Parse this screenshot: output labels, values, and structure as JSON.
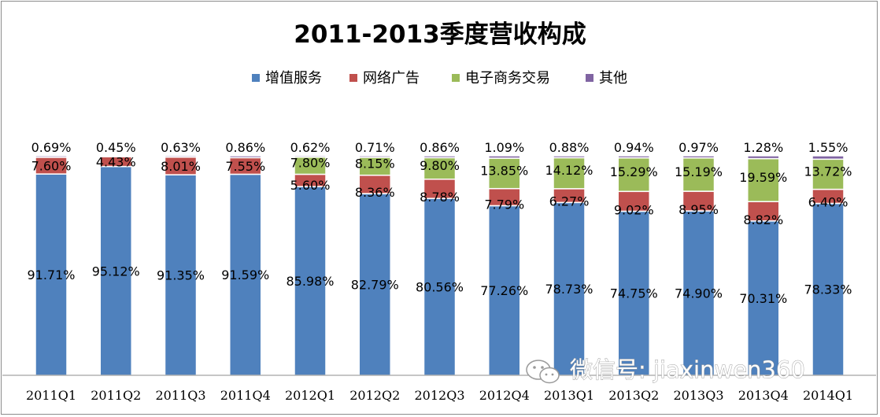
{
  "chart_data": {
    "type": "bar",
    "stacked": true,
    "title": "2011-2013季度营收构成",
    "categories": [
      "2011Q1",
      "2011Q2",
      "2011Q3",
      "2011Q4",
      "2012Q1",
      "2012Q2",
      "2012Q3",
      "2012Q4",
      "2013Q1",
      "2013Q2",
      "2013Q3",
      "2013Q4",
      "2014Q1"
    ],
    "series": [
      {
        "name": "增值服务",
        "color": "#4f81bd",
        "values": [
          91.71,
          95.12,
          91.35,
          91.59,
          85.98,
          82.79,
          80.56,
          77.26,
          78.73,
          74.75,
          74.9,
          70.31,
          78.33
        ],
        "labels": [
          "91.71%",
          "95.12%",
          "91.35%",
          "91.59%",
          "85.98%",
          "82.79%",
          "80.56%",
          "77.26%",
          "78.73%",
          "74.75%",
          "74.90%",
          "70.31%",
          "78.33%"
        ]
      },
      {
        "name": "网络广告",
        "color": "#c0504d",
        "values": [
          7.6,
          4.43,
          8.01,
          7.55,
          5.6,
          8.36,
          8.78,
          7.79,
          6.27,
          9.02,
          8.95,
          8.82,
          6.4
        ],
        "labels": [
          "7.60%",
          "4.43%",
          "8.01%",
          "7.55%",
          "5.60%",
          "8.36%",
          "8.78%",
          "7.79%",
          "6.27%",
          "9.02%",
          "8.95%",
          "8.82%",
          "6.40%"
        ]
      },
      {
        "name": "电子商务交易",
        "color": "#9bbb59",
        "values": [
          0,
          0,
          0,
          0,
          7.8,
          8.15,
          9.8,
          13.85,
          14.12,
          15.29,
          15.19,
          19.59,
          13.72
        ],
        "labels": [
          "",
          "",
          "",
          "",
          "7.80%",
          "8.15%",
          "9.80%",
          "13.85%",
          "14.12%",
          "15.29%",
          "15.19%",
          "19.59%",
          "13.72%"
        ]
      },
      {
        "name": "其他",
        "color": "#8064a2",
        "values": [
          0.69,
          0.45,
          0.63,
          0.86,
          0.62,
          0.71,
          0.86,
          1.09,
          0.88,
          0.94,
          0.97,
          1.28,
          1.55
        ],
        "labels": [
          "0.69%",
          "0.45%",
          "0.63%",
          "0.86%",
          "0.62%",
          "0.71%",
          "0.86%",
          "1.09%",
          "0.88%",
          "0.94%",
          "0.97%",
          "1.28%",
          "1.55%"
        ]
      }
    ],
    "ylim": [
      0,
      100
    ],
    "legend_position": "top",
    "grid": false
  },
  "watermark": {
    "text": "微信号: jiaxinwen360",
    "icon": "wechat-icon"
  }
}
